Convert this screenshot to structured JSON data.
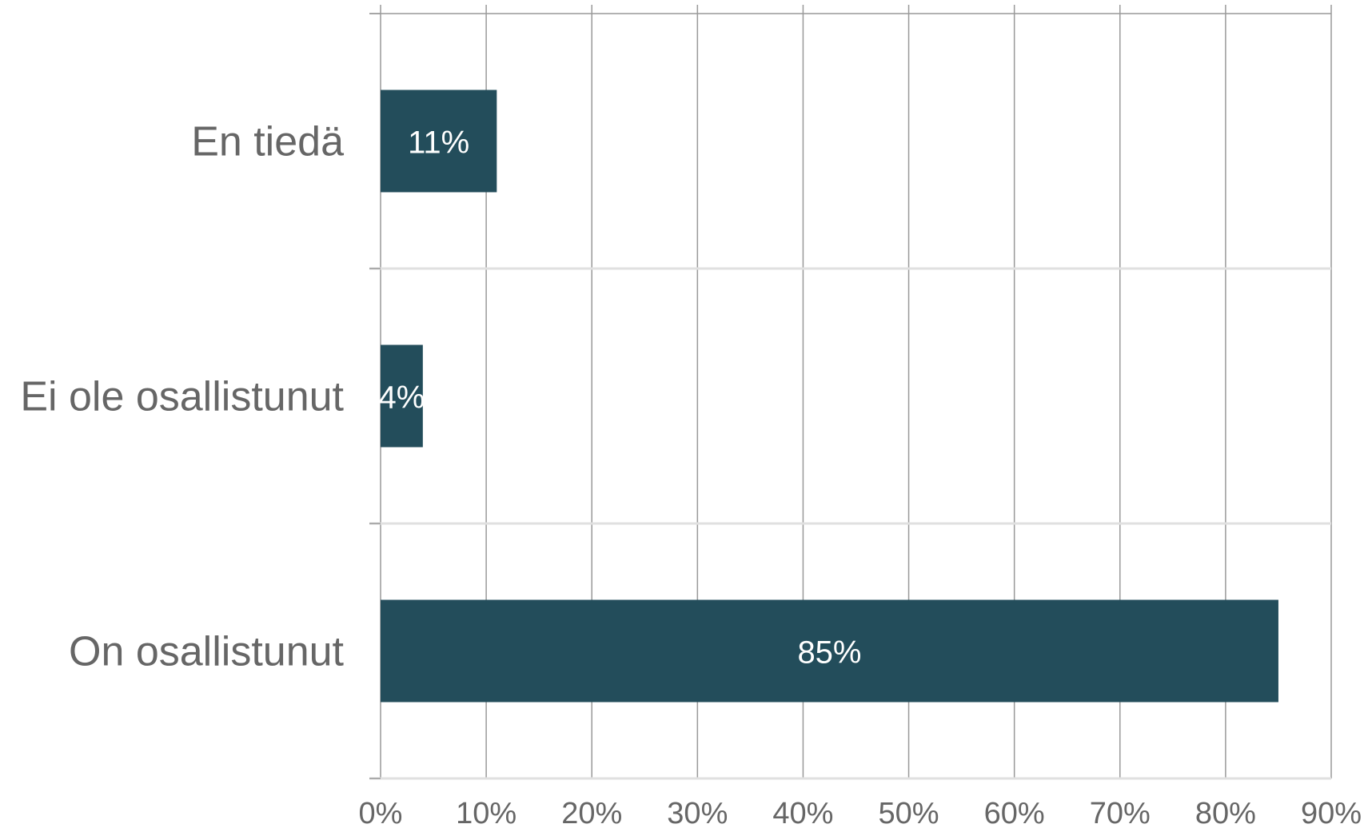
{
  "chart_data": {
    "type": "bar",
    "orientation": "horizontal",
    "categories": [
      "En tiedä",
      "Ei ole osallistunut",
      "On osallistunut"
    ],
    "values": [
      11,
      4,
      85
    ],
    "data_labels": [
      "11%",
      "4%",
      "85%"
    ],
    "xlim": [
      0,
      90
    ],
    "x_ticks": [
      0,
      10,
      20,
      30,
      40,
      50,
      60,
      70,
      80,
      90
    ],
    "x_tick_labels": [
      "0%",
      "10%",
      "20%",
      "30%",
      "40%",
      "50%",
      "60%",
      "70%",
      "80%",
      "90%"
    ],
    "grid": true,
    "legend": "none",
    "title": "",
    "xlabel": "",
    "ylabel": "",
    "colors": {
      "bar": "#234d5b",
      "grid_vertical": "#999999",
      "grid_horizontal": "#e0e0e0",
      "text": "#666666",
      "label_on_bar": "#ffffff"
    }
  }
}
